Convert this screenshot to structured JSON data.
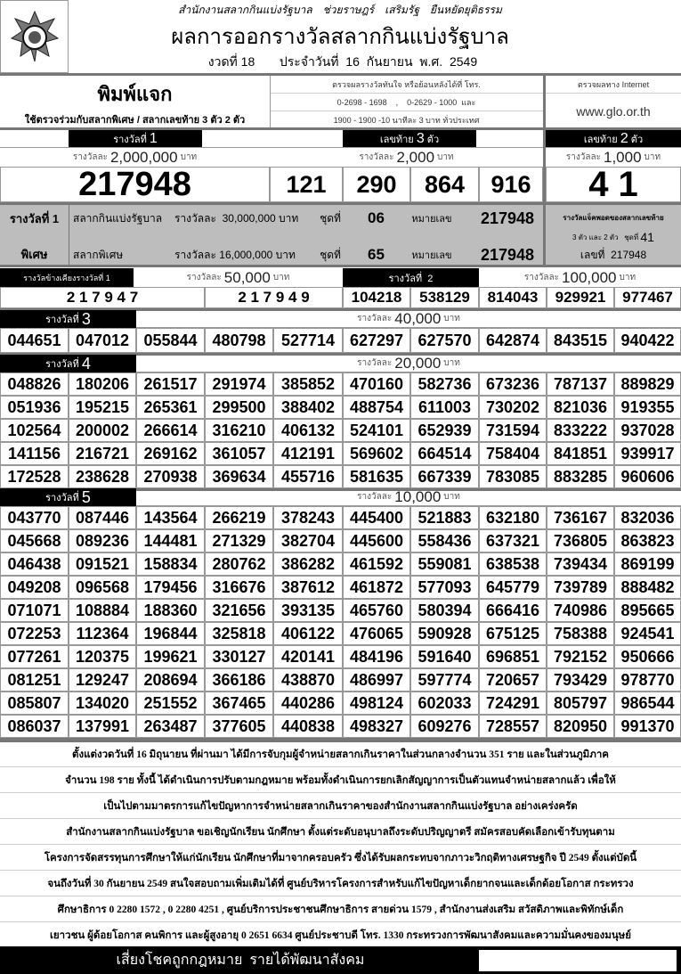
{
  "header": {
    "org_line": "สำนักงานสลากกินแบ่งรัฐบาล    ช่วยราษฎร์    เสริมรัฐ    ยืนหยัดยุติธรรม",
    "title": "ผลการออกรางวัลสลากกินแบ่งรัฐบาล",
    "draw": "งวดที่ 18",
    "date": "ประจำวันที่  16  กันยายน  พ.ศ.  2549",
    "logo": "glo-emblem"
  },
  "info": {
    "print_label": "พิมพ์แจก",
    "print_note": "ใช้ตรวจร่วมกับสลากพิเศษ / สลากเลขท้าย 3 ตัว 2 ตัว",
    "phone_title": "ตรวจผลรางวัลทันใจ  หรือย้อนหลังได้ที่  โทร.",
    "phone_line1": "0-2698 - 1698    ,    0-2629 - 1000  และ",
    "phone_line2": "1900 - 1900 -10  นาทีละ 3 บาท  ทั่วประเทศ",
    "internet_title": "ตรวจผลทาง  Internet",
    "website": "www.glo.or.th"
  },
  "prize1": {
    "label_pre": "รางวัลที่",
    "label_num": "1",
    "amount_pre": "รางวัลละ",
    "amount": "2,000,000",
    "unit": "บาท",
    "number": "217948"
  },
  "last3": {
    "label_pre": "เลขท้าย",
    "label_num": "3",
    "label_post": "ตัว",
    "amount_pre": "รางวัลละ",
    "amount": "2,000",
    "unit": "บาท",
    "numbers": [
      "121",
      "290",
      "864",
      "916"
    ]
  },
  "last2": {
    "label_pre": "เลขท้าย",
    "label_num": "2",
    "label_post": "ตัว",
    "amount_pre": "รางวัลละ",
    "amount": "1,000",
    "unit": "บาท",
    "number": "4 1"
  },
  "special": {
    "title1": "รางวัลที่ 1",
    "title2": "พิเศษ",
    "row1": {
      "name": "สลากกินแบ่งรัฐบาล",
      "amount": "รางวัลละ  30,000,000 บาท",
      "set_label": "ชุดที่",
      "set": "06",
      "num_label": "หมายเลข",
      "number": "217948"
    },
    "row2": {
      "name": "สลากพิเศษ",
      "amount": "รางวัลละ 16,000,000 บาท",
      "set_label": "ชุดที่",
      "set": "65",
      "num_label": "หมายเลข",
      "number": "217948"
    },
    "jackpot_line1": "รางวัลแจ็คพอตของสลากเลขท้าย",
    "jackpot_line2": "3 ตัว และ 2 ตัว   ชุดที่",
    "jackpot_set": "41",
    "jackpot_line3": "เลขที่  217948"
  },
  "near1": {
    "label": "รางวัลข้างเคียงรางวัลที่ 1",
    "amount_pre": "รางวัลละ",
    "amount": "50,000",
    "unit": "บาท",
    "numbers": [
      "2 1 7 9 4 7",
      "2 1 7 9 4 9"
    ]
  },
  "prize2": {
    "label": "รางวัลที่  2",
    "amount_pre": "รางวัลละ",
    "amount": "100,000",
    "unit": "บาท",
    "numbers": [
      "104218",
      "538129",
      "814043",
      "929921",
      "977467"
    ]
  },
  "prize3": {
    "label_pre": "รางวัลที่",
    "label_num": "3",
    "amount_pre": "รางวัลละ",
    "amount": "40,000",
    "unit": "บาท",
    "numbers": [
      "044651",
      "047012",
      "055844",
      "480798",
      "527714",
      "627297",
      "627570",
      "642874",
      "843515",
      "940422"
    ]
  },
  "prize4": {
    "label_pre": "รางวัลที่",
    "label_num": "4",
    "amount_pre": "รางวัลละ",
    "amount": "20,000",
    "unit": "บาท",
    "numbers": [
      "048826",
      "180206",
      "261517",
      "291974",
      "385852",
      "470160",
      "582736",
      "673236",
      "787137",
      "889829",
      "051936",
      "195215",
      "265361",
      "299500",
      "388402",
      "488754",
      "611003",
      "730202",
      "821036",
      "919355",
      "102564",
      "200002",
      "266614",
      "316210",
      "406132",
      "524101",
      "652939",
      "731594",
      "833222",
      "937028",
      "141156",
      "216721",
      "269162",
      "361057",
      "412191",
      "569602",
      "664514",
      "758404",
      "841851",
      "939917",
      "172528",
      "238628",
      "270938",
      "369634",
      "455716",
      "581635",
      "667339",
      "783085",
      "883285",
      "960606"
    ]
  },
  "prize5": {
    "label_pre": "รางวัลที่",
    "label_num": "5",
    "amount_pre": "รางวัลละ",
    "amount": "10,000",
    "unit": "บาท",
    "numbers": [
      "043770",
      "087446",
      "143564",
      "266219",
      "378243",
      "445400",
      "521883",
      "632180",
      "736167",
      "832036",
      "045668",
      "089236",
      "144481",
      "271329",
      "382704",
      "445600",
      "558436",
      "637321",
      "736805",
      "863823",
      "046438",
      "091521",
      "158834",
      "280762",
      "386282",
      "461592",
      "559081",
      "638538",
      "739434",
      "869199",
      "049208",
      "096568",
      "179456",
      "316676",
      "387612",
      "461872",
      "577093",
      "645779",
      "739789",
      "888482",
      "071071",
      "108884",
      "188360",
      "321656",
      "393135",
      "465760",
      "580394",
      "666416",
      "740986",
      "895665",
      "072253",
      "112364",
      "196844",
      "325818",
      "406122",
      "476065",
      "590928",
      "675125",
      "758388",
      "924541",
      "077261",
      "120375",
      "199621",
      "330127",
      "420141",
      "484196",
      "591640",
      "696851",
      "792152",
      "950666",
      "081251",
      "129247",
      "208694",
      "366186",
      "438870",
      "486997",
      "597774",
      "720657",
      "793429",
      "978770",
      "085807",
      "134020",
      "251552",
      "367465",
      "440286",
      "498124",
      "602033",
      "724291",
      "805797",
      "986544",
      "086037",
      "137991",
      "263487",
      "377605",
      "440838",
      "498327",
      "609276",
      "728557",
      "820950",
      "991370"
    ]
  },
  "notice": [
    "ตั้งแต่งวดวันที่ 16 มิถุนายน ที่ผ่านมา ได้มีการจับกุมผู้จำหน่ายสลากเกินราคาในส่วนกลางจำนวน 351 ราย และในส่วนภูมิภาค",
    "จำนวน 198 ราย ทั้งนี้ ได้ดำเนินการปรับตามกฎหมาย  พร้อมทั้งดำเนินการยกเลิกสัญญาการเป็นตัวแทนจำหน่ายสลากแล้ว  เพื่อให้",
    "เป็นไปตามมาตรการแก้ไขปัญหาการจำหน่ายสลากเกินราคาของสำนักงานสลากกินแบ่งรัฐบาล อย่างเคร่งครัด",
    "สำนักงานสลากกินแบ่งรัฐบาล ขอเชิญนักเรียน นักศึกษา ตั้งแต่ระดับอนุบาลถึงระดับปริญญาตรี สมัครสอบคัดเลือกเข้ารับทุนตาม",
    "โครงการจัดสรรทุนการศึกษาให้แก่นักเรียน นักศึกษาที่มาจากครอบครัว ซึ่งได้รับผลกระทบจากภาวะวิกฤติทางเศรษฐกิจ ปี 2549  ตั้งแต่บัดนี้",
    "จนถึงวันที่ 30 กันยายน 2549 สนใจสอบถามเพิ่มเติมได้ที่ ศูนย์บริหารโครงการสำหรับแก้ไขปัญหาเด็กยากจนและเด็กด้อยโอกาส กระทรวง",
    "ศึกษาธิการ 0 2280 1572 , 0 2280 4251 , ศูนย์บริการประชาชนศึกษาธิการ  สายด่วน 1579 , สำนักงานส่งเสริม สวัสดิภาพและพิทักษ์เด็ก",
    "เยาวชน ผู้ด้อยโอกาส คนพิการ และผู้สูงอายุ  0 2651 6634  ศูนย์ประชาบดี โทร. 1330   กระทรวงการพัฒนาสังคมและความมั่นคงของมนุษย์"
  ],
  "footer": {
    "slogan": "เสี่ยงโชคถูกกฎหมาย  รายได้พัฒนาสังคม"
  }
}
